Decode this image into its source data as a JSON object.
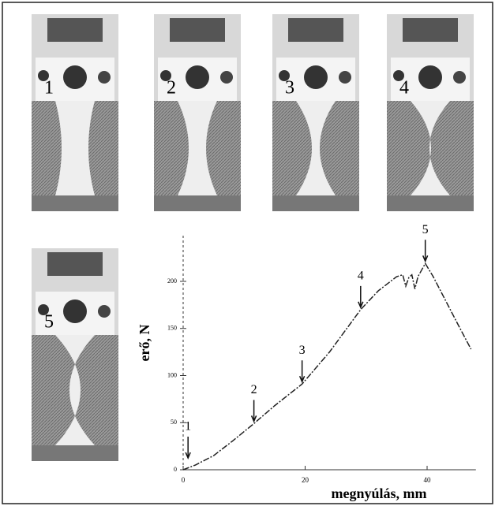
{
  "photos": [
    {
      "label": "1"
    },
    {
      "label": "2"
    },
    {
      "label": "3"
    },
    {
      "label": "4"
    },
    {
      "label": "5"
    }
  ],
  "chart_data": {
    "type": "line",
    "x_label": "megnyúlás, mm",
    "y_label": "erő, N",
    "x": [
      0,
      2,
      5,
      8,
      11.6,
      15,
      19.5,
      24,
      29.1,
      32,
      35,
      36,
      36.5,
      37,
      37.5,
      38,
      38.5,
      39.7,
      41,
      43,
      45,
      47.2
    ],
    "values": [
      0,
      5,
      15,
      30,
      49,
      68,
      91,
      125,
      170,
      190,
      205,
      207,
      195,
      204,
      207,
      192,
      205,
      219,
      205,
      180,
      155,
      128
    ],
    "color": "#222222",
    "xlim": [
      0,
      48
    ],
    "ylim": [
      0,
      250
    ],
    "xticks": [
      0,
      20,
      40
    ],
    "yticks": [
      0,
      50,
      100,
      150,
      200
    ],
    "markers": [
      {
        "label": "1",
        "x": 0.8,
        "y": 10
      },
      {
        "label": "2",
        "x": 11.6,
        "y": 49
      },
      {
        "label": "3",
        "x": 19.5,
        "y": 91
      },
      {
        "label": "4",
        "x": 29.1,
        "y": 170
      },
      {
        "label": "5",
        "x": 39.7,
        "y": 219
      }
    ]
  }
}
